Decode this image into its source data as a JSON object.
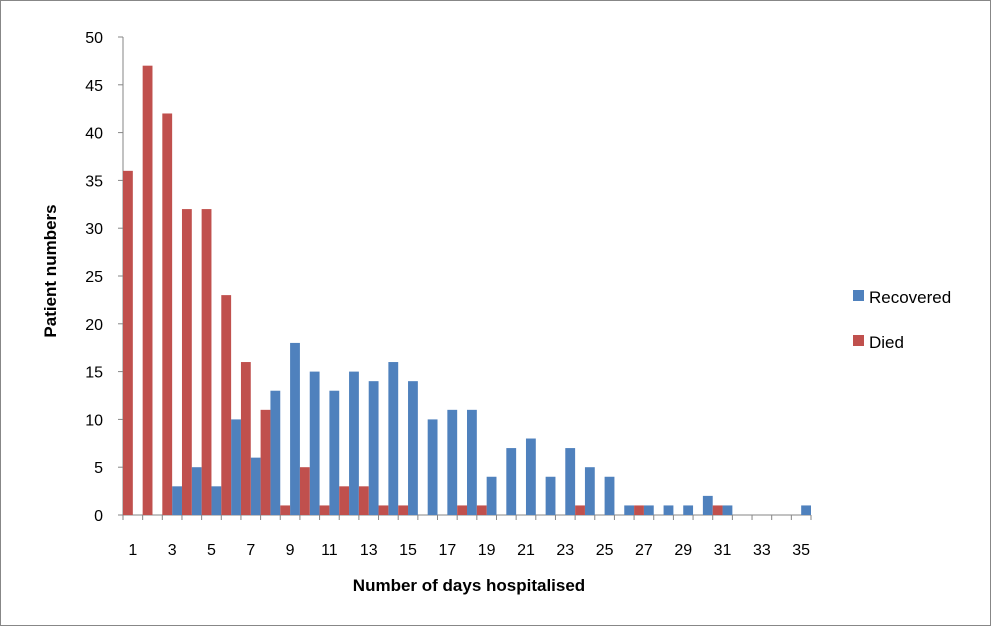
{
  "chart_data": {
    "type": "bar",
    "title": "",
    "xlabel": "Number of days hospitalised",
    "ylabel": "Patient numbers",
    "ylim": [
      0,
      50
    ],
    "yticks": [
      0,
      5,
      10,
      15,
      20,
      25,
      30,
      35,
      40,
      45,
      50
    ],
    "categories": [
      1,
      2,
      3,
      4,
      5,
      6,
      7,
      8,
      9,
      10,
      11,
      12,
      13,
      14,
      15,
      16,
      17,
      18,
      19,
      20,
      21,
      22,
      23,
      24,
      25,
      26,
      27,
      28,
      29,
      30,
      31,
      32,
      33,
      34,
      35
    ],
    "xtick_labels": [
      "1",
      "3",
      "5",
      "7",
      "9",
      "11",
      "13",
      "15",
      "17",
      "19",
      "21",
      "23",
      "25",
      "27",
      "29",
      "31",
      "33",
      "35"
    ],
    "series": [
      {
        "name": "Recovered",
        "color": "#4f81bd",
        "values": [
          0,
          0,
          3,
          5,
          3,
          10,
          6,
          13,
          18,
          15,
          13,
          15,
          14,
          16,
          14,
          10,
          11,
          11,
          4,
          7,
          8,
          4,
          7,
          5,
          4,
          1,
          1,
          1,
          1,
          2,
          1,
          0,
          0,
          0,
          1
        ]
      },
      {
        "name": "Died",
        "color": "#c0504d",
        "values": [
          36,
          47,
          42,
          32,
          32,
          23,
          16,
          11,
          1,
          5,
          1,
          3,
          3,
          1,
          1,
          0,
          0,
          1,
          1,
          0,
          0,
          0,
          0,
          1,
          0,
          0,
          1,
          0,
          0,
          0,
          1,
          0,
          0,
          0,
          0
        ]
      }
    ],
    "grid": false,
    "legend_position": "right"
  }
}
